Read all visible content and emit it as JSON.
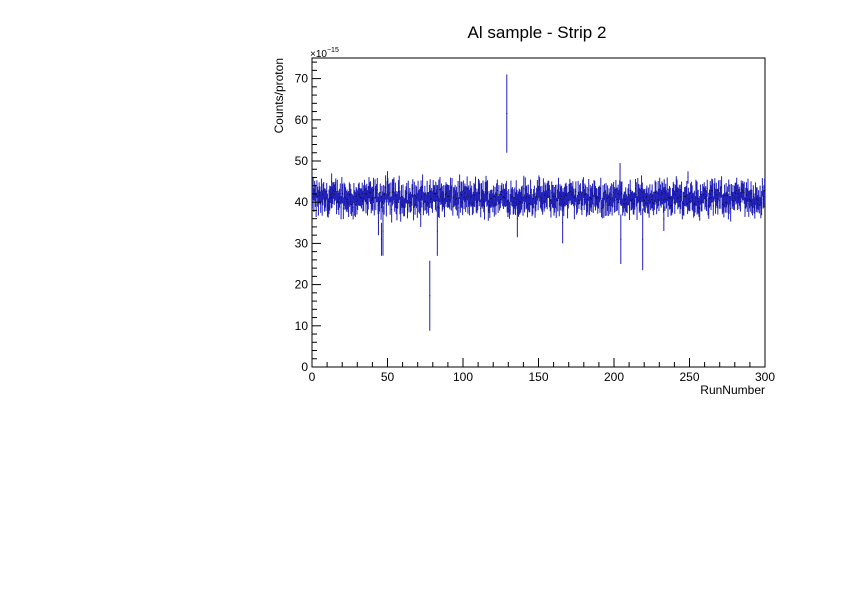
{
  "chart_data": {
    "type": "scatter",
    "title": "Al sample - Strip 2",
    "xlabel": "RunNumber",
    "ylabel": "Counts/proton",
    "y_exponent_label": "×10",
    "y_exponent_power": "−15",
    "xlim": [
      0,
      300
    ],
    "ylim": [
      0,
      75
    ],
    "x_major_ticks": [
      0,
      50,
      100,
      150,
      200,
      250,
      300
    ],
    "x_tick_labels": [
      "0",
      "50",
      "100",
      "150",
      "200",
      "250",
      "300"
    ],
    "y_major_ticks": [
      0,
      10,
      20,
      30,
      40,
      50,
      60,
      70
    ],
    "y_tick_labels": [
      "0",
      "10",
      "20",
      "30",
      "40",
      "50",
      "60",
      "70"
    ],
    "grid": false,
    "legend": "none",
    "baseline": 41,
    "baseline_error": 2,
    "series": [
      {
        "color": "#1f1fb8",
        "outliers": [
          {
            "x": 13,
            "y": 45,
            "err": 2
          },
          {
            "x": 44,
            "y": 35,
            "err": 3
          },
          {
            "x": 46,
            "y": 31,
            "err": 4
          },
          {
            "x": 47,
            "y": 33,
            "err": 6
          },
          {
            "x": 50,
            "y": 45,
            "err": 2.5
          },
          {
            "x": 72,
            "y": 37,
            "err": 3
          },
          {
            "x": 78,
            "y": 17.3,
            "err": 8.5
          },
          {
            "x": 82,
            "y": 42,
            "err": 3
          },
          {
            "x": 83,
            "y": 33,
            "err": 6
          },
          {
            "x": 84,
            "y": 43,
            "err": 2.5
          },
          {
            "x": 129,
            "y": 61.5,
            "err": 9.5
          },
          {
            "x": 136,
            "y": 36,
            "err": 4.5
          },
          {
            "x": 166,
            "y": 35,
            "err": 5
          },
          {
            "x": 204,
            "y": 45,
            "err": 4.5
          },
          {
            "x": 204.5,
            "y": 31,
            "err": 6
          },
          {
            "x": 219,
            "y": 31,
            "err": 7.5
          },
          {
            "x": 233,
            "y": 36,
            "err": 3
          },
          {
            "x": 249,
            "y": 46,
            "err": 1.5
          },
          {
            "x": 255,
            "y": 41,
            "err": 4
          },
          {
            "x": 276,
            "y": 44,
            "err": 1.5
          }
        ]
      }
    ]
  }
}
